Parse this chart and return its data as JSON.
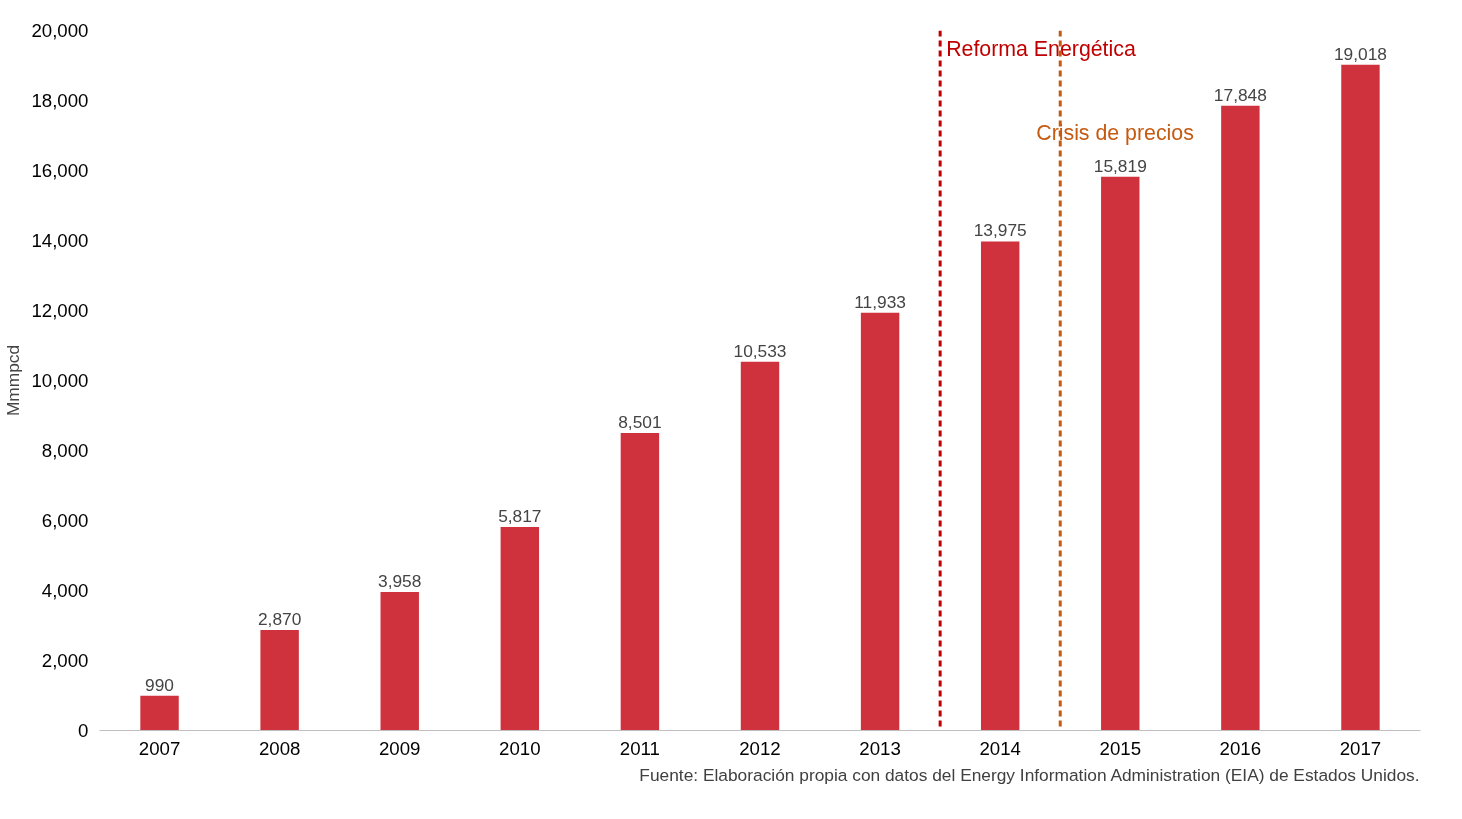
{
  "chart_data": {
    "type": "bar",
    "ylabel": "Mmmpcd",
    "x": [
      2007,
      2008,
      2009,
      2010,
      2011,
      2012,
      2013,
      2014,
      2015,
      2016,
      2017
    ],
    "values": [
      990,
      2870,
      3958,
      5817,
      8501,
      10533,
      11933,
      13975,
      15819,
      17848,
      19018
    ],
    "color": "#d0323d",
    "value_labels": [
      "990",
      "2,870",
      "3,958",
      "5,817",
      "8,501",
      "10,533",
      "11,933",
      "13,975",
      "15,819",
      "17,848",
      "19,018"
    ],
    "xlim": [
      2006.5,
      2017.5
    ],
    "xticks": [
      {
        "value": 2007,
        "label": "2007"
      },
      {
        "value": 2008,
        "label": "2008"
      },
      {
        "value": 2009,
        "label": "2009"
      },
      {
        "value": 2010,
        "label": "2010"
      },
      {
        "value": 2011,
        "label": "2011"
      },
      {
        "value": 2012,
        "label": "2012"
      },
      {
        "value": 2013,
        "label": "2013"
      },
      {
        "value": 2014,
        "label": "2014"
      },
      {
        "value": 2015,
        "label": "2015"
      },
      {
        "value": 2016,
        "label": "2016"
      },
      {
        "value": 2017,
        "label": "2017"
      }
    ],
    "ylim": [
      0,
      20000
    ],
    "yticks": [
      {
        "value": 0,
        "label": "0"
      },
      {
        "value": 2000,
        "label": "2,000"
      },
      {
        "value": 4000,
        "label": "4,000"
      },
      {
        "value": 6000,
        "label": "6,000"
      },
      {
        "value": 8000,
        "label": "8,000"
      },
      {
        "value": 10000,
        "label": "10,000"
      },
      {
        "value": 12000,
        "label": "12,000"
      },
      {
        "value": 14000,
        "label": "14,000"
      },
      {
        "value": 16000,
        "label": "16,000"
      },
      {
        "value": 18000,
        "label": "18,000"
      },
      {
        "value": 20000,
        "label": "20,000"
      }
    ],
    "grid": false,
    "ref_lines": [
      {
        "axis": "x",
        "value": 2013.5,
        "label": "Reforma Energética",
        "color": "#c00000",
        "line_style": "dashed"
      },
      {
        "axis": "x",
        "value": 2014.5,
        "label": "Crisis de precios",
        "color": "#c55a11",
        "line_style": "dashed"
      }
    ],
    "annotations": [
      "Fuente: Elaboración propia con datos del Energy Information Administration (EIA) de Estados Unidos."
    ]
  }
}
